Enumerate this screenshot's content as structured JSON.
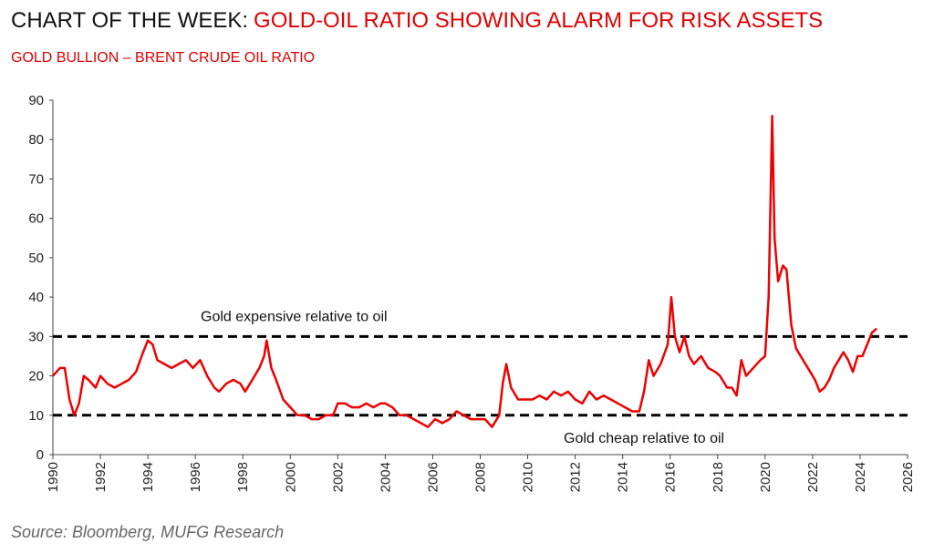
{
  "chart_data": {
    "type": "line",
    "title_prefix": "CHART OF THE WEEK:",
    "title": "GOLD-OIL RATIO SHOWING ALARM FOR RISK ASSETS",
    "subtitle": "GOLD BULLION – BRENT CRUDE OIL RATIO",
    "source": "Source: Bloomberg, MUFG Research",
    "color": "#ee0000",
    "x": [
      1990.0,
      1990.3,
      1990.5,
      1990.7,
      1990.9,
      1991.1,
      1991.3,
      1991.5,
      1991.8,
      1992.0,
      1992.3,
      1992.6,
      1992.9,
      1993.2,
      1993.5,
      1993.8,
      1994.0,
      1994.2,
      1994.4,
      1994.7,
      1995.0,
      1995.3,
      1995.6,
      1995.9,
      1996.2,
      1996.5,
      1996.8,
      1997.0,
      1997.3,
      1997.6,
      1997.9,
      1998.1,
      1998.4,
      1998.7,
      1998.9,
      1999.0,
      1999.2,
      1999.4,
      1999.7,
      2000.0,
      2000.3,
      2000.6,
      2000.9,
      2001.2,
      2001.5,
      2001.8,
      2002.0,
      2002.3,
      2002.6,
      2002.9,
      2003.2,
      2003.5,
      2003.8,
      2004.0,
      2004.3,
      2004.6,
      2004.9,
      2005.2,
      2005.5,
      2005.8,
      2006.1,
      2006.4,
      2006.7,
      2007.0,
      2007.3,
      2007.6,
      2007.9,
      2008.2,
      2008.5,
      2008.8,
      2008.95,
      2009.1,
      2009.3,
      2009.6,
      2009.9,
      2010.2,
      2010.5,
      2010.8,
      2011.1,
      2011.4,
      2011.7,
      2012.0,
      2012.3,
      2012.6,
      2012.9,
      2013.2,
      2013.5,
      2013.8,
      2014.1,
      2014.4,
      2014.7,
      2014.9,
      2015.1,
      2015.3,
      2015.6,
      2015.9,
      2016.05,
      2016.2,
      2016.4,
      2016.6,
      2016.8,
      2017.0,
      2017.3,
      2017.6,
      2017.9,
      2018.1,
      2018.4,
      2018.6,
      2018.8,
      2019.0,
      2019.2,
      2019.5,
      2019.8,
      2020.0,
      2020.15,
      2020.3,
      2020.4,
      2020.55,
      2020.75,
      2020.9,
      2021.1,
      2021.3,
      2021.6,
      2021.9,
      2022.1,
      2022.3,
      2022.5,
      2022.7,
      2022.9,
      2023.1,
      2023.3,
      2023.5,
      2023.7,
      2023.9,
      2024.1,
      2024.3,
      2024.5,
      2024.7
    ],
    "values": [
      20,
      22,
      22,
      14,
      10,
      13,
      20,
      19,
      17,
      20,
      18,
      17,
      18,
      19,
      21,
      26,
      29,
      28,
      24,
      23,
      22,
      23,
      24,
      22,
      24,
      20,
      17,
      16,
      18,
      19,
      18,
      16,
      19,
      22,
      25,
      29,
      22,
      19,
      14,
      12,
      10,
      10,
      9,
      9,
      10,
      10,
      13,
      13,
      12,
      12,
      13,
      12,
      13,
      13,
      12,
      10,
      10,
      9,
      8,
      7,
      9,
      8,
      9,
      11,
      10,
      9,
      9,
      9,
      7,
      10,
      18,
      23,
      17,
      14,
      14,
      14,
      15,
      14,
      16,
      15,
      16,
      14,
      13,
      16,
      14,
      15,
      14,
      13,
      12,
      11,
      11,
      16,
      24,
      20,
      23,
      28,
      40,
      30,
      26,
      30,
      25,
      23,
      25,
      22,
      21,
      20,
      17,
      17,
      15,
      24,
      20,
      22,
      24,
      25,
      40,
      86,
      55,
      44,
      48,
      47,
      33,
      27,
      24,
      21,
      19,
      16,
      17,
      19,
      22,
      24,
      26,
      24,
      21,
      25,
      25,
      28,
      31,
      32
    ],
    "xlim": [
      1990,
      2026
    ],
    "xticks": [
      1990,
      1992,
      1994,
      1996,
      1998,
      2000,
      2002,
      2004,
      2006,
      2008,
      2010,
      2012,
      2014,
      2016,
      2018,
      2020,
      2022,
      2024,
      2026
    ],
    "ylim": [
      0,
      90
    ],
    "yticks": [
      0,
      10,
      20,
      30,
      40,
      50,
      60,
      70,
      80,
      90
    ],
    "reference_lines": [
      {
        "value": 30,
        "label": "Gold expensive relative to oil"
      },
      {
        "value": 10,
        "label": "Gold cheap relative to oil"
      }
    ]
  }
}
